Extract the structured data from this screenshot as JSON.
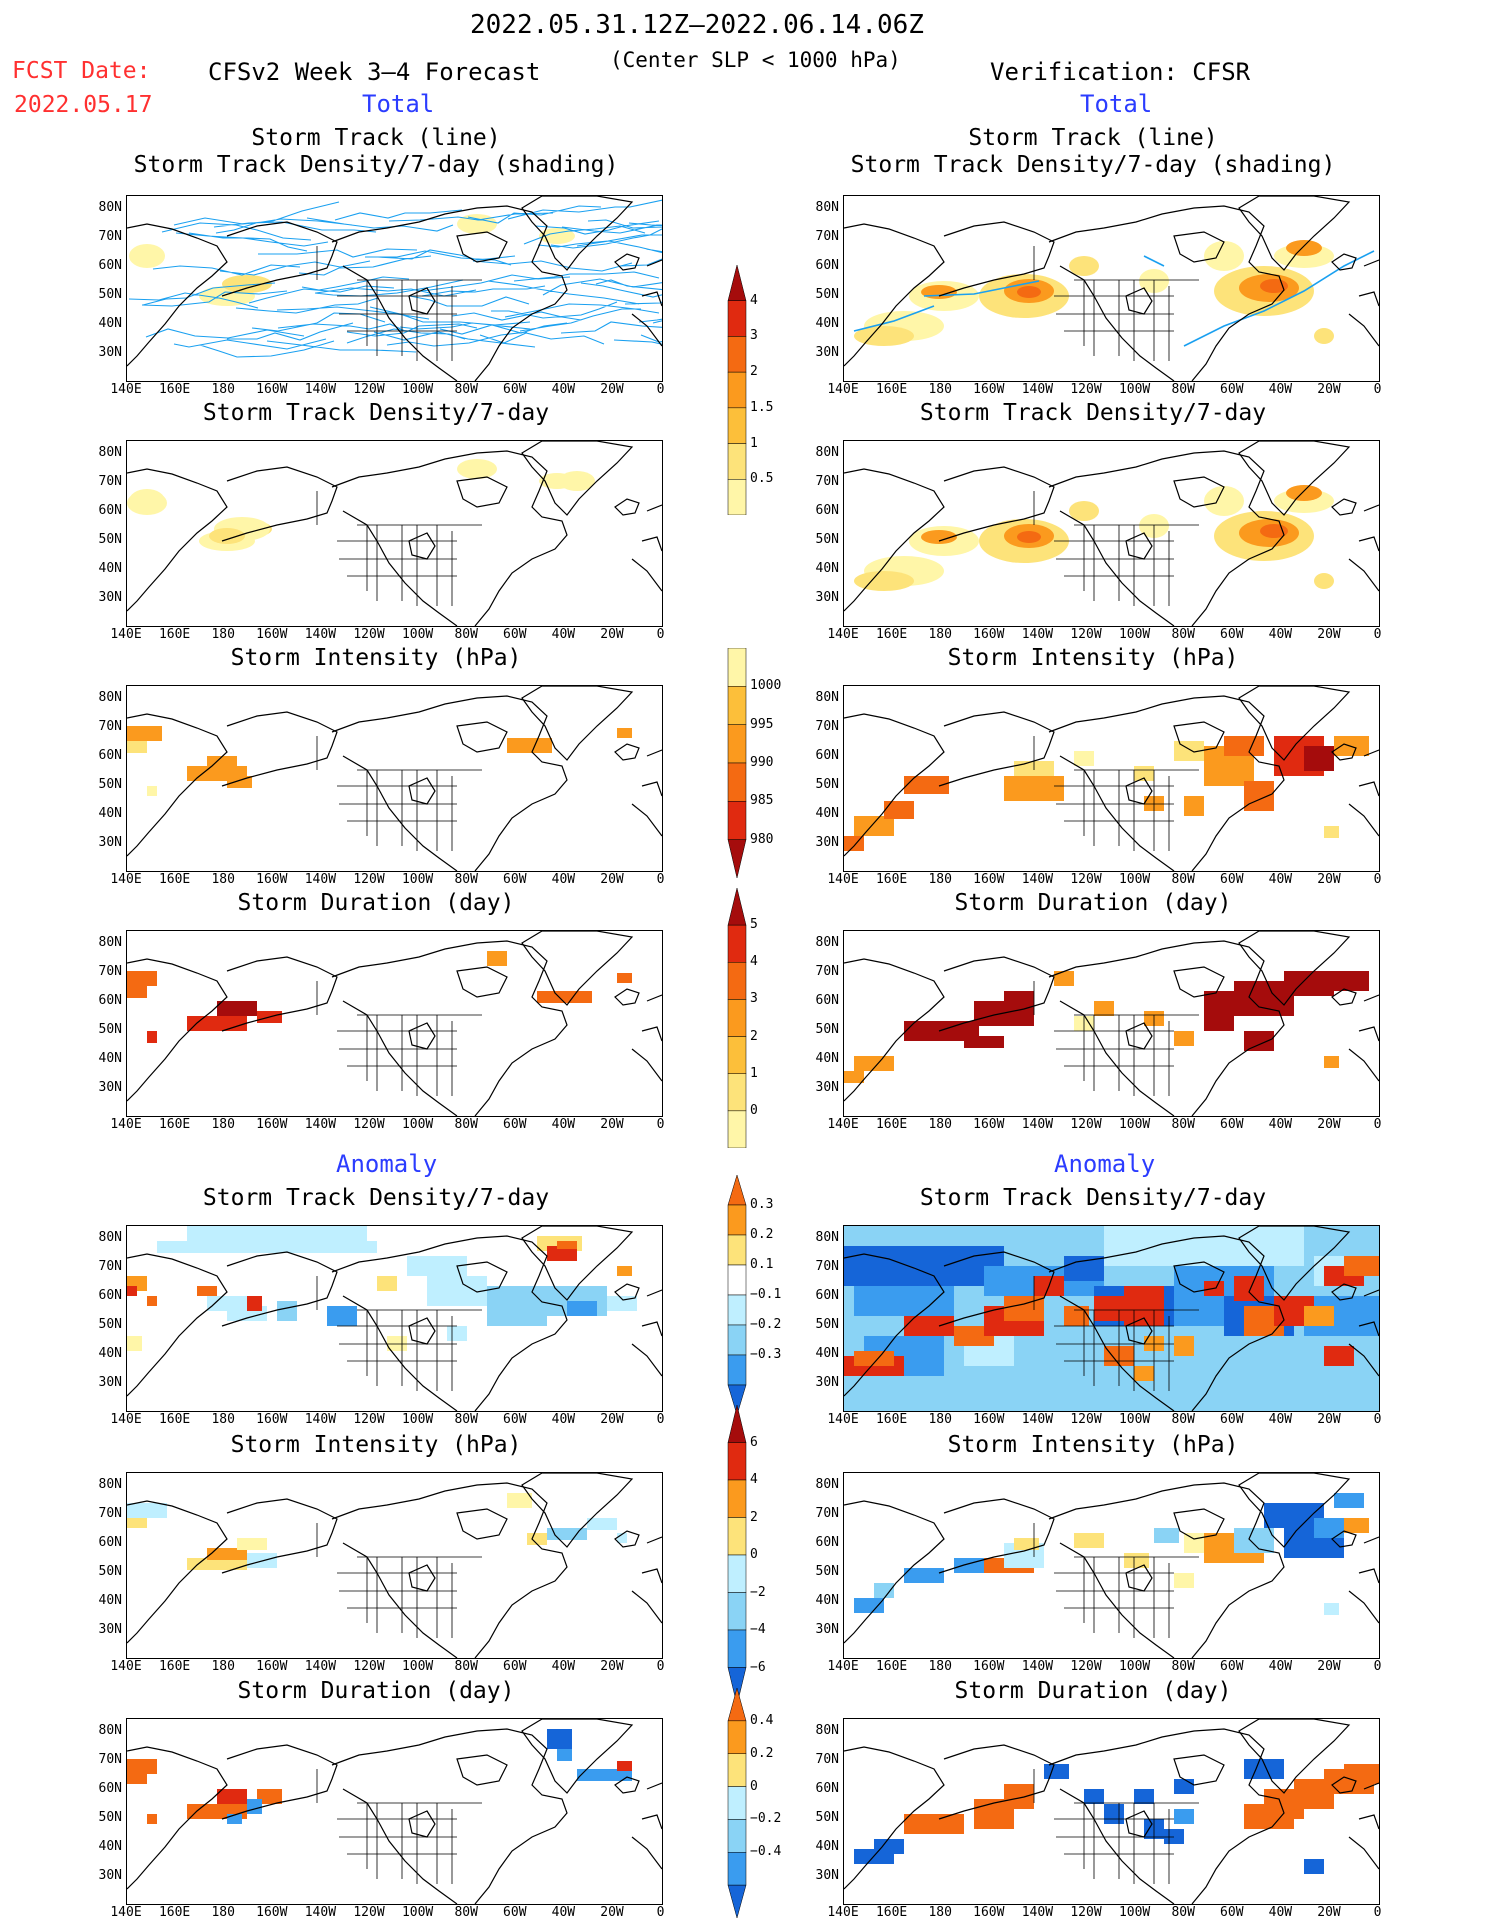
{
  "header": {
    "date_range": "2022.05.31.12Z–2022.06.14.06Z",
    "fcst_label": "FCST Date:",
    "fcst_date": "2022.05.17",
    "left_model": "CFSv2 Week 3–4 Forecast",
    "threshold": "(Center SLP < 1000 hPa)",
    "right_model": "Verification: CFSR"
  },
  "sections": {
    "total": "Total",
    "anomaly": "Anomaly"
  },
  "panel_titles": {
    "track_line": "Storm Track (line)",
    "track_shading": "Storm Track Density/7-day (shading)",
    "density": "Storm Track Density/7-day",
    "intensity": "Storm Intensity (hPa)",
    "duration": "Storm Duration (day)"
  },
  "lat_labels": [
    "80N",
    "70N",
    "60N",
    "50N",
    "40N",
    "30N"
  ],
  "lon_labels": [
    "140E",
    "160E",
    "180",
    "160W",
    "140W",
    "120W",
    "100W",
    "80W",
    "60W",
    "40W",
    "20W",
    "0"
  ],
  "colorbars": {
    "density_total": [
      "4",
      "3",
      "2",
      "1.5",
      "1",
      "0.5"
    ],
    "intensity_total": [
      "1000",
      "995",
      "990",
      "985",
      "980"
    ],
    "duration_total": [
      "5",
      "4",
      "3",
      "2",
      "1",
      "0"
    ],
    "density_anom": [
      "0.3",
      "0.2",
      "0.1",
      "−0.1",
      "−0.2",
      "−0.3"
    ],
    "intensity_anom": [
      "6",
      "4",
      "2",
      "0",
      "−2",
      "−4",
      "−6"
    ],
    "duration_anom": [
      "0.4",
      "0.2",
      "0",
      "−0.2",
      "−0.4"
    ]
  },
  "colors": {
    "yellow_light": "#fff6a8",
    "yellow": "#fde37a",
    "orange_light": "#fcbf3a",
    "orange": "#fb9a1e",
    "orange_dark": "#f46a12",
    "red": "#e02a10",
    "dark_red": "#a50c0c",
    "cyan_light": "#bfefff",
    "sky": "#8ad3f5",
    "blue_mid": "#3a9cef",
    "blue": "#1565d8",
    "track_line": "#1aa0f0",
    "land_outline": "#000000"
  }
}
